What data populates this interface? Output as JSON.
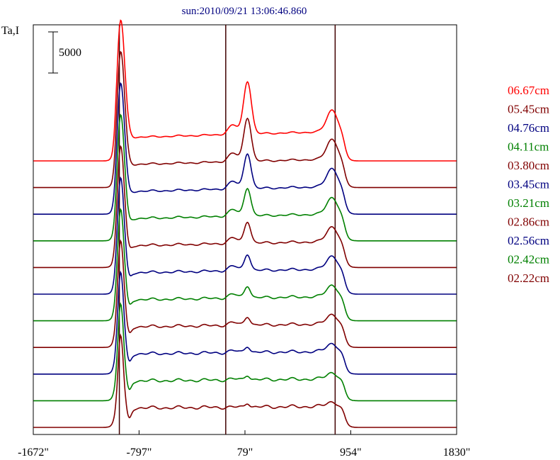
{
  "chart_data": {
    "type": "line",
    "title": "sun:2010/09/21 13:06:46.860",
    "ylabel": "Ta,I",
    "scale_bar_label": "5000",
    "scale_bar_value": 5000,
    "xlim": [
      -1672,
      1830
    ],
    "x_ticks": [
      {
        "value": -1672,
        "label": "-1672\""
      },
      {
        "value": -797,
        "label": "-797\""
      },
      {
        "value": 79,
        "label": "79\""
      },
      {
        "value": 954,
        "label": "954\""
      },
      {
        "value": 1830,
        "label": "1830\""
      }
    ],
    "vertical_markers": [
      -960,
      -80,
      825
    ],
    "grid": false,
    "legend_position": "right",
    "series": [
      {
        "name": "06.67cm",
        "color": "#ff0000"
      },
      {
        "name": "05.45cm",
        "color": "#800000"
      },
      {
        "name": "04.76cm",
        "color": "#000080"
      },
      {
        "name": "04.11cm",
        "color": "#008000"
      },
      {
        "name": "03.80cm",
        "color": "#800000"
      },
      {
        "name": "03.45cm",
        "color": "#000080"
      },
      {
        "name": "03.21cm",
        "color": "#008000"
      },
      {
        "name": "02.86cm",
        "color": "#800000"
      },
      {
        "name": "02.56cm",
        "color": "#000080"
      },
      {
        "name": "02.42cm",
        "color": "#008000"
      },
      {
        "name": "02.22cm",
        "color": "#800000"
      }
    ]
  }
}
